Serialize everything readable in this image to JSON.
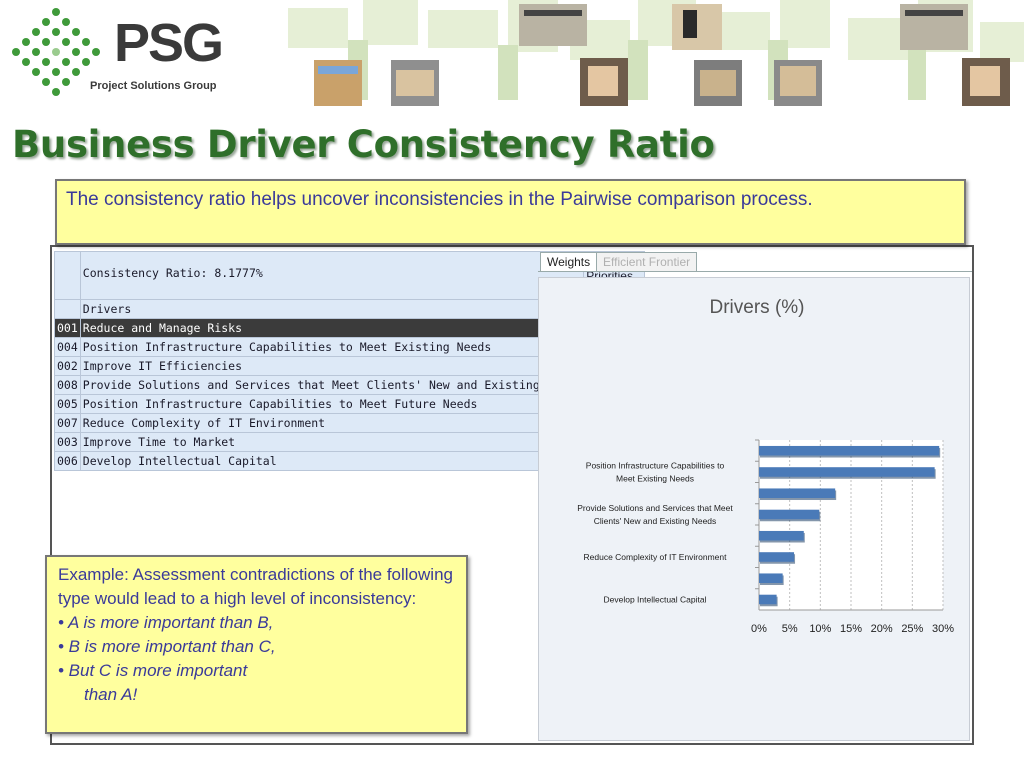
{
  "brand": {
    "name": "PSG",
    "tagline": "Project Solutions Group"
  },
  "slide": {
    "title": "Business Driver Consistency Ratio"
  },
  "callout_top": {
    "text": "The consistency ratio helps uncover inconsistencies in the Pairwise comparison process."
  },
  "callout_bottom": {
    "intro": "Example: Assessment contradictions of the following type would lead to a high level of inconsistency:",
    "bullets": [
      "• A is more important than B,",
      "• B is more important than C,",
      "• But C is more important",
      "than A!"
    ]
  },
  "app": {
    "consistency_label": "Consistency Ratio: 8.1777%",
    "priorities_header": "Priorities",
    "drivers_header": "Drivers",
    "rows": [
      {
        "id": "001",
        "name": "Reduce and Manage Risks",
        "value": "29.3780%"
      },
      {
        "id": "004",
        "name": "Position Infrastructure Capabilities to Meet Existing Needs",
        "value": "28.6369%"
      },
      {
        "id": "002",
        "name": "Improve IT Efficiencies",
        "value": "12.4189%"
      },
      {
        "id": "008",
        "name": "Provide Solutions and Services that Meet Clients' New and Existing Needs",
        "value": "9.8274%"
      },
      {
        "id": "005",
        "name": "Position Infrastructure Capabilities to Meet Future Needs",
        "value": "7.3004%"
      },
      {
        "id": "007",
        "name": "Reduce Complexity of IT Environment",
        "value": "5.7122%"
      },
      {
        "id": "003",
        "name": "Improve Time to Market",
        "value": "3.8565%"
      },
      {
        "id": "006",
        "name": "Develop Intellectual Capital",
        "value": "2.8696%"
      }
    ],
    "tabs": [
      "Weights",
      "Efficient Frontier"
    ]
  },
  "chart_data": {
    "type": "bar",
    "orientation": "horizontal",
    "title": "Drivers (%)",
    "categories": [
      "Reduce and Manage Risks",
      "Position Infrastructure Capabilities to Meet Existing Needs",
      "Improve IT Efficiencies",
      "Provide Solutions and Services that Meet Clients' New and Existing Needs",
      "Position Infrastructure Capabilities to Meet Future Needs",
      "Reduce Complexity of IT Environment",
      "Improve Time to Market",
      "Develop Intellectual Capital"
    ],
    "values": [
      29.378,
      28.6369,
      12.4189,
      9.8274,
      7.3004,
      5.7122,
      3.8565,
      2.8696
    ],
    "visible_category_labels": [
      "",
      "Position Infrastructure Capabilities to Meet Existing Needs",
      "",
      "Provide Solutions and Services that Meet Clients' New and Existing Needs",
      "",
      "Reduce Complexity of IT Environment",
      "",
      "Develop Intellectual Capital"
    ],
    "xlim": [
      0,
      30
    ],
    "xticks": [
      "0%",
      "5%",
      "10%",
      "15%",
      "20%",
      "25%",
      "30%"
    ],
    "bar_color": "#4a7ab8",
    "grid": true
  },
  "colors": {
    "title": "#2f6f2a",
    "callout_fill": "#ffff9e",
    "callout_text": "#3a3a9a",
    "brand_green": "#3f9a3a"
  }
}
